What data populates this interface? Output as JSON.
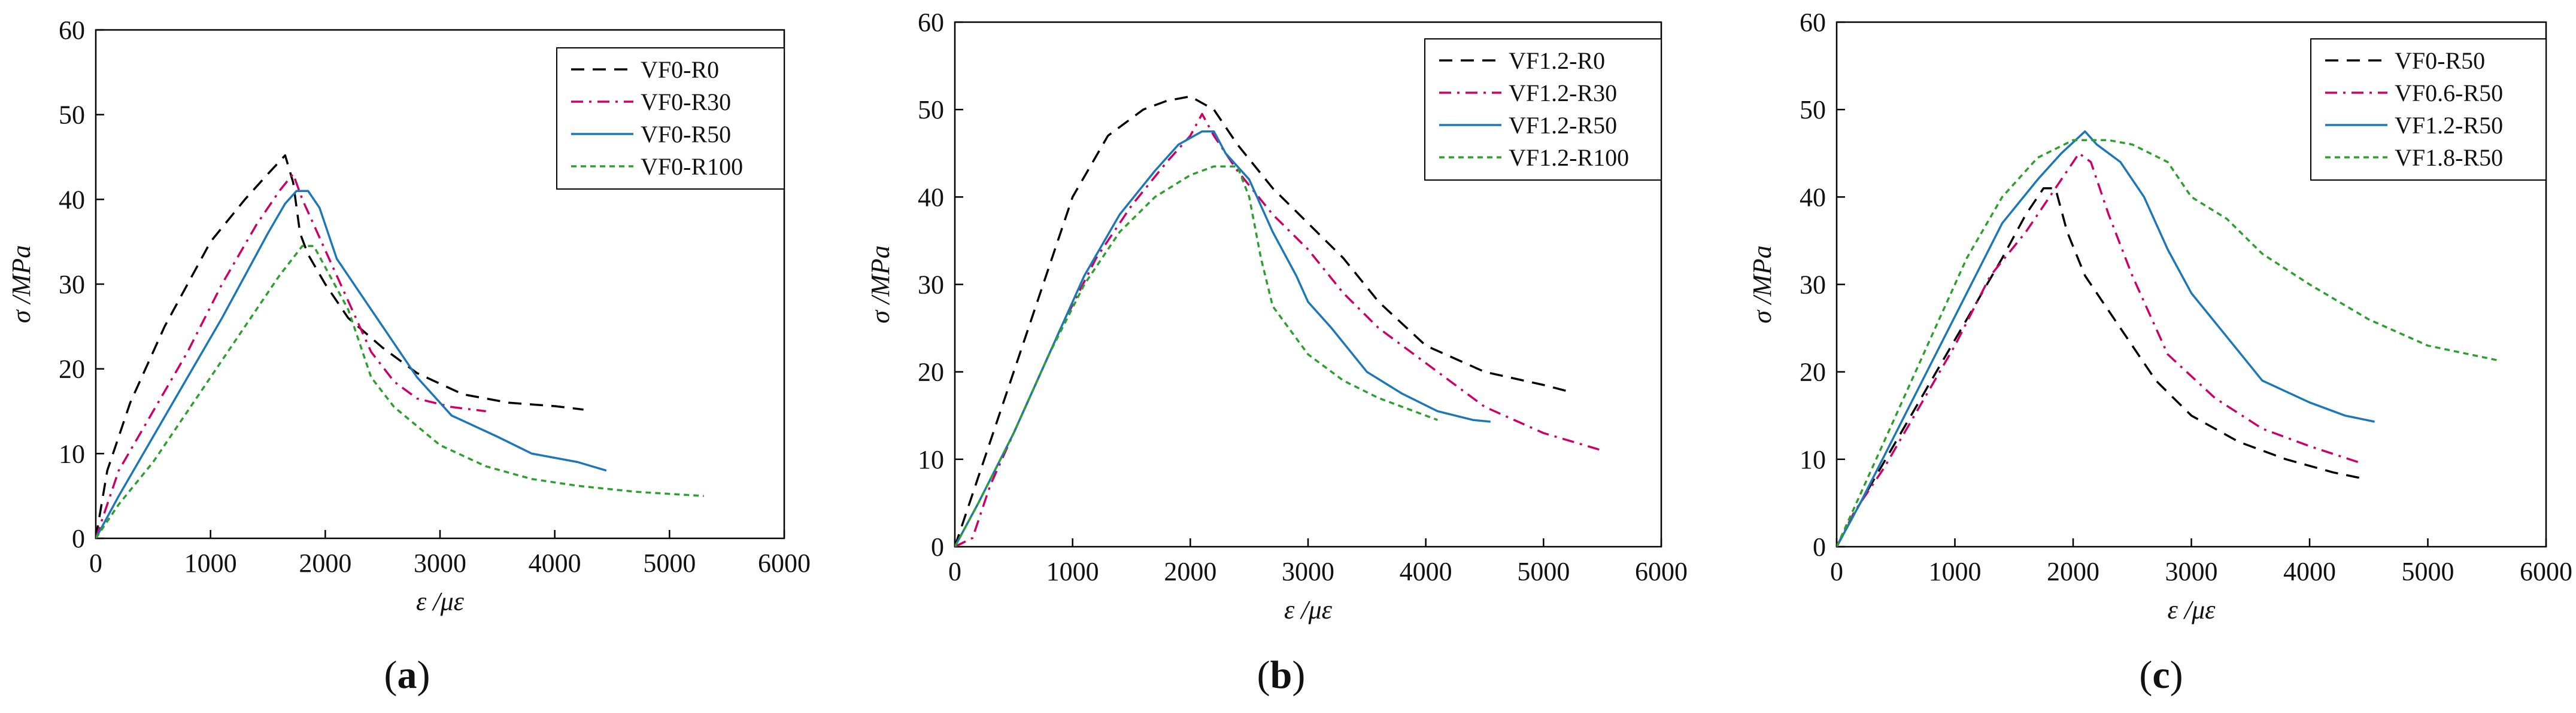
{
  "chart_data": [
    {
      "type": "line",
      "panel_label": "a",
      "xlabel": "ε /με",
      "ylabel": "σ /MPa",
      "xlim": [
        0,
        6000
      ],
      "ylim": [
        0,
        60
      ],
      "xticks": [
        0,
        1000,
        2000,
        3000,
        4000,
        5000,
        6000
      ],
      "yticks": [
        0,
        10,
        20,
        30,
        40,
        50,
        60
      ],
      "legend_position": "top-right",
      "series": [
        {
          "name": "VF0-R0",
          "color": "#000000",
          "dash": "dashed",
          "points": [
            [
              0,
              0
            ],
            [
              100,
              8
            ],
            [
              300,
              16
            ],
            [
              600,
              25
            ],
            [
              1000,
              35
            ],
            [
              1300,
              40
            ],
            [
              1500,
              43
            ],
            [
              1650,
              45.2
            ],
            [
              1720,
              42
            ],
            [
              1780,
              36
            ],
            [
              1850,
              33.5
            ],
            [
              2000,
              30
            ],
            [
              2200,
              26
            ],
            [
              2500,
              22.5
            ],
            [
              2800,
              19.5
            ],
            [
              3200,
              17
            ],
            [
              3600,
              16
            ],
            [
              4000,
              15.6
            ],
            [
              4250,
              15.2
            ]
          ]
        },
        {
          "name": "VF0-R30",
          "color": "#cc0066",
          "dash": "dashdot",
          "points": [
            [
              0,
              0
            ],
            [
              200,
              8
            ],
            [
              500,
              15
            ],
            [
              800,
              22
            ],
            [
              1100,
              30
            ],
            [
              1400,
              37
            ],
            [
              1600,
              41
            ],
            [
              1720,
              43
            ],
            [
              1800,
              40
            ],
            [
              1900,
              37
            ],
            [
              2000,
              34
            ],
            [
              2200,
              28
            ],
            [
              2400,
              22
            ],
            [
              2600,
              18.5
            ],
            [
              2800,
              16.5
            ],
            [
              3100,
              15.5
            ],
            [
              3400,
              15
            ]
          ]
        },
        {
          "name": "VF0-R50",
          "color": "#1a78b8",
          "dash": "solid",
          "points": [
            [
              0,
              0
            ],
            [
              200,
              5
            ],
            [
              500,
              12
            ],
            [
              800,
              19
            ],
            [
              1100,
              26
            ],
            [
              1300,
              31
            ],
            [
              1500,
              36
            ],
            [
              1650,
              39.5
            ],
            [
              1750,
              41
            ],
            [
              1850,
              41
            ],
            [
              1950,
              39
            ],
            [
              2100,
              33
            ],
            [
              2300,
              29
            ],
            [
              2500,
              25
            ],
            [
              2800,
              19
            ],
            [
              3100,
              14.5
            ],
            [
              3500,
              12
            ],
            [
              3800,
              10
            ],
            [
              4200,
              9
            ],
            [
              4450,
              8
            ]
          ]
        },
        {
          "name": "VF0-R100",
          "color": "#2e9e2e",
          "dash": "dotted",
          "points": [
            [
              0,
              0
            ],
            [
              200,
              4
            ],
            [
              500,
              9
            ],
            [
              800,
              15
            ],
            [
              1100,
              21
            ],
            [
              1400,
              27
            ],
            [
              1600,
              31
            ],
            [
              1800,
              34.5
            ],
            [
              1900,
              34.5
            ],
            [
              2000,
              32
            ],
            [
              2200,
              27
            ],
            [
              2400,
              19
            ],
            [
              2600,
              15.5
            ],
            [
              3000,
              11
            ],
            [
              3400,
              8.5
            ],
            [
              3800,
              7
            ],
            [
              4200,
              6.2
            ],
            [
              4700,
              5.5
            ],
            [
              5300,
              5
            ]
          ]
        }
      ]
    },
    {
      "type": "line",
      "panel_label": "b",
      "xlabel": "ε /με",
      "ylabel": "σ /MPa",
      "xlim": [
        0,
        6000
      ],
      "ylim": [
        0,
        60
      ],
      "xticks": [
        0,
        1000,
        2000,
        3000,
        4000,
        5000,
        6000
      ],
      "yticks": [
        0,
        10,
        20,
        30,
        40,
        50,
        60
      ],
      "legend_position": "top-right",
      "series": [
        {
          "name": "VF1.2-R0",
          "color": "#000000",
          "dash": "dashed",
          "points": [
            [
              0,
              0
            ],
            [
              200,
              8
            ],
            [
              500,
              20
            ],
            [
              800,
              32
            ],
            [
              1000,
              40
            ],
            [
              1300,
              47
            ],
            [
              1600,
              50
            ],
            [
              1800,
              51
            ],
            [
              2000,
              51.5
            ],
            [
              2200,
              50
            ],
            [
              2400,
              46
            ],
            [
              2700,
              41
            ],
            [
              3000,
              37
            ],
            [
              3300,
              33
            ],
            [
              3600,
              28
            ],
            [
              4000,
              23
            ],
            [
              4500,
              20
            ],
            [
              5000,
              18.5
            ],
            [
              5200,
              17.8
            ]
          ]
        },
        {
          "name": "VF1.2-R30",
          "color": "#cc0066",
          "dash": "dashdot",
          "points": [
            [
              0,
              0
            ],
            [
              150,
              1
            ],
            [
              300,
              7
            ],
            [
              600,
              16
            ],
            [
              900,
              25
            ],
            [
              1200,
              33
            ],
            [
              1500,
              39
            ],
            [
              1800,
              44
            ],
            [
              2000,
              47
            ],
            [
              2100,
              49.5
            ],
            [
              2200,
              47
            ],
            [
              2400,
              43
            ],
            [
              2700,
              38
            ],
            [
              3000,
              34
            ],
            [
              3300,
              29
            ],
            [
              3600,
              25
            ],
            [
              4000,
              21
            ],
            [
              4500,
              16
            ],
            [
              5000,
              13
            ],
            [
              5500,
              11
            ]
          ]
        },
        {
          "name": "VF1.2-R50",
          "color": "#1a78b8",
          "dash": "solid",
          "points": [
            [
              0,
              0
            ],
            [
              200,
              5
            ],
            [
              500,
              13
            ],
            [
              800,
              22
            ],
            [
              1100,
              31
            ],
            [
              1400,
              38
            ],
            [
              1700,
              43
            ],
            [
              1900,
              46
            ],
            [
              2100,
              47.5
            ],
            [
              2200,
              47.5
            ],
            [
              2300,
              45
            ],
            [
              2500,
              42
            ],
            [
              2700,
              36
            ],
            [
              2900,
              31
            ],
            [
              3000,
              28
            ],
            [
              3200,
              25
            ],
            [
              3500,
              20
            ],
            [
              3800,
              17.5
            ],
            [
              4100,
              15.5
            ],
            [
              4400,
              14.5
            ],
            [
              4550,
              14.3
            ]
          ]
        },
        {
          "name": "VF1.2-R100",
          "color": "#2e9e2e",
          "dash": "dotted",
          "points": [
            [
              0,
              0
            ],
            [
              200,
              5
            ],
            [
              500,
              13
            ],
            [
              800,
              22
            ],
            [
              1100,
              30
            ],
            [
              1400,
              36
            ],
            [
              1700,
              40
            ],
            [
              2000,
              42.5
            ],
            [
              2200,
              43.5
            ],
            [
              2400,
              43.5
            ],
            [
              2500,
              40
            ],
            [
              2600,
              33
            ],
            [
              2700,
              27.5
            ],
            [
              3000,
              22
            ],
            [
              3300,
              19
            ],
            [
              3600,
              17
            ],
            [
              4000,
              15
            ],
            [
              4100,
              14.5
            ]
          ]
        }
      ]
    },
    {
      "type": "line",
      "panel_label": "c",
      "xlabel": "ε /με",
      "ylabel": "σ /MPa",
      "xlim": [
        0,
        6000
      ],
      "ylim": [
        0,
        60
      ],
      "xticks": [
        0,
        1000,
        2000,
        3000,
        4000,
        5000,
        6000
      ],
      "yticks": [
        0,
        10,
        20,
        30,
        40,
        50,
        60
      ],
      "legend_position": "top-right",
      "series": [
        {
          "name": "VF0-R50",
          "color": "#000000",
          "dash": "dashed",
          "points": [
            [
              0,
              0
            ],
            [
              200,
              5
            ],
            [
              500,
              12
            ],
            [
              800,
              19
            ],
            [
              1100,
              26
            ],
            [
              1400,
              33
            ],
            [
              1600,
              38
            ],
            [
              1750,
              41
            ],
            [
              1850,
              41
            ],
            [
              1950,
              36
            ],
            [
              2100,
              31
            ],
            [
              2400,
              25
            ],
            [
              2700,
              19
            ],
            [
              3000,
              15
            ],
            [
              3400,
              12
            ],
            [
              3800,
              10
            ],
            [
              4200,
              8.5
            ],
            [
              4450,
              7.8
            ]
          ]
        },
        {
          "name": "VF0.6-R50",
          "color": "#cc0066",
          "dash": "dashdot",
          "points": [
            [
              0,
              0
            ],
            [
              150,
              4
            ],
            [
              400,
              9
            ],
            [
              700,
              16
            ],
            [
              1000,
              23
            ],
            [
              1300,
              31
            ],
            [
              1600,
              36
            ],
            [
              1900,
              42
            ],
            [
              2050,
              45
            ],
            [
              2150,
              44
            ],
            [
              2300,
              38
            ],
            [
              2500,
              31
            ],
            [
              2800,
              22
            ],
            [
              3200,
              17
            ],
            [
              3600,
              13.5
            ],
            [
              4000,
              11.5
            ],
            [
              4450,
              9.5
            ]
          ]
        },
        {
          "name": "VF1.2-R50",
          "color": "#1a78b8",
          "dash": "solid",
          "points": [
            [
              0,
              0
            ],
            [
              200,
              5
            ],
            [
              500,
              13
            ],
            [
              800,
              21
            ],
            [
              1100,
              29
            ],
            [
              1400,
              37
            ],
            [
              1700,
              42
            ],
            [
              1900,
              45
            ],
            [
              2100,
              47.5
            ],
            [
              2200,
              46
            ],
            [
              2400,
              44
            ],
            [
              2600,
              40
            ],
            [
              2800,
              34
            ],
            [
              3000,
              29
            ],
            [
              3300,
              24
            ],
            [
              3600,
              19
            ],
            [
              4000,
              16.5
            ],
            [
              4300,
              15
            ],
            [
              4550,
              14.3
            ]
          ]
        },
        {
          "name": "VF1.8-R50",
          "color": "#2e9e2e",
          "dash": "dotted",
          "points": [
            [
              0,
              0
            ],
            [
              200,
              6
            ],
            [
              500,
              15
            ],
            [
              800,
              24
            ],
            [
              1100,
              33
            ],
            [
              1400,
              40
            ],
            [
              1700,
              44.5
            ],
            [
              2000,
              46.5
            ],
            [
              2300,
              46.5
            ],
            [
              2500,
              46
            ],
            [
              2800,
              44
            ],
            [
              3000,
              40
            ],
            [
              3300,
              37.5
            ],
            [
              3600,
              33.5
            ],
            [
              4000,
              30
            ],
            [
              4500,
              26
            ],
            [
              5000,
              23
            ],
            [
              5600,
              21.3
            ]
          ]
        }
      ]
    }
  ]
}
